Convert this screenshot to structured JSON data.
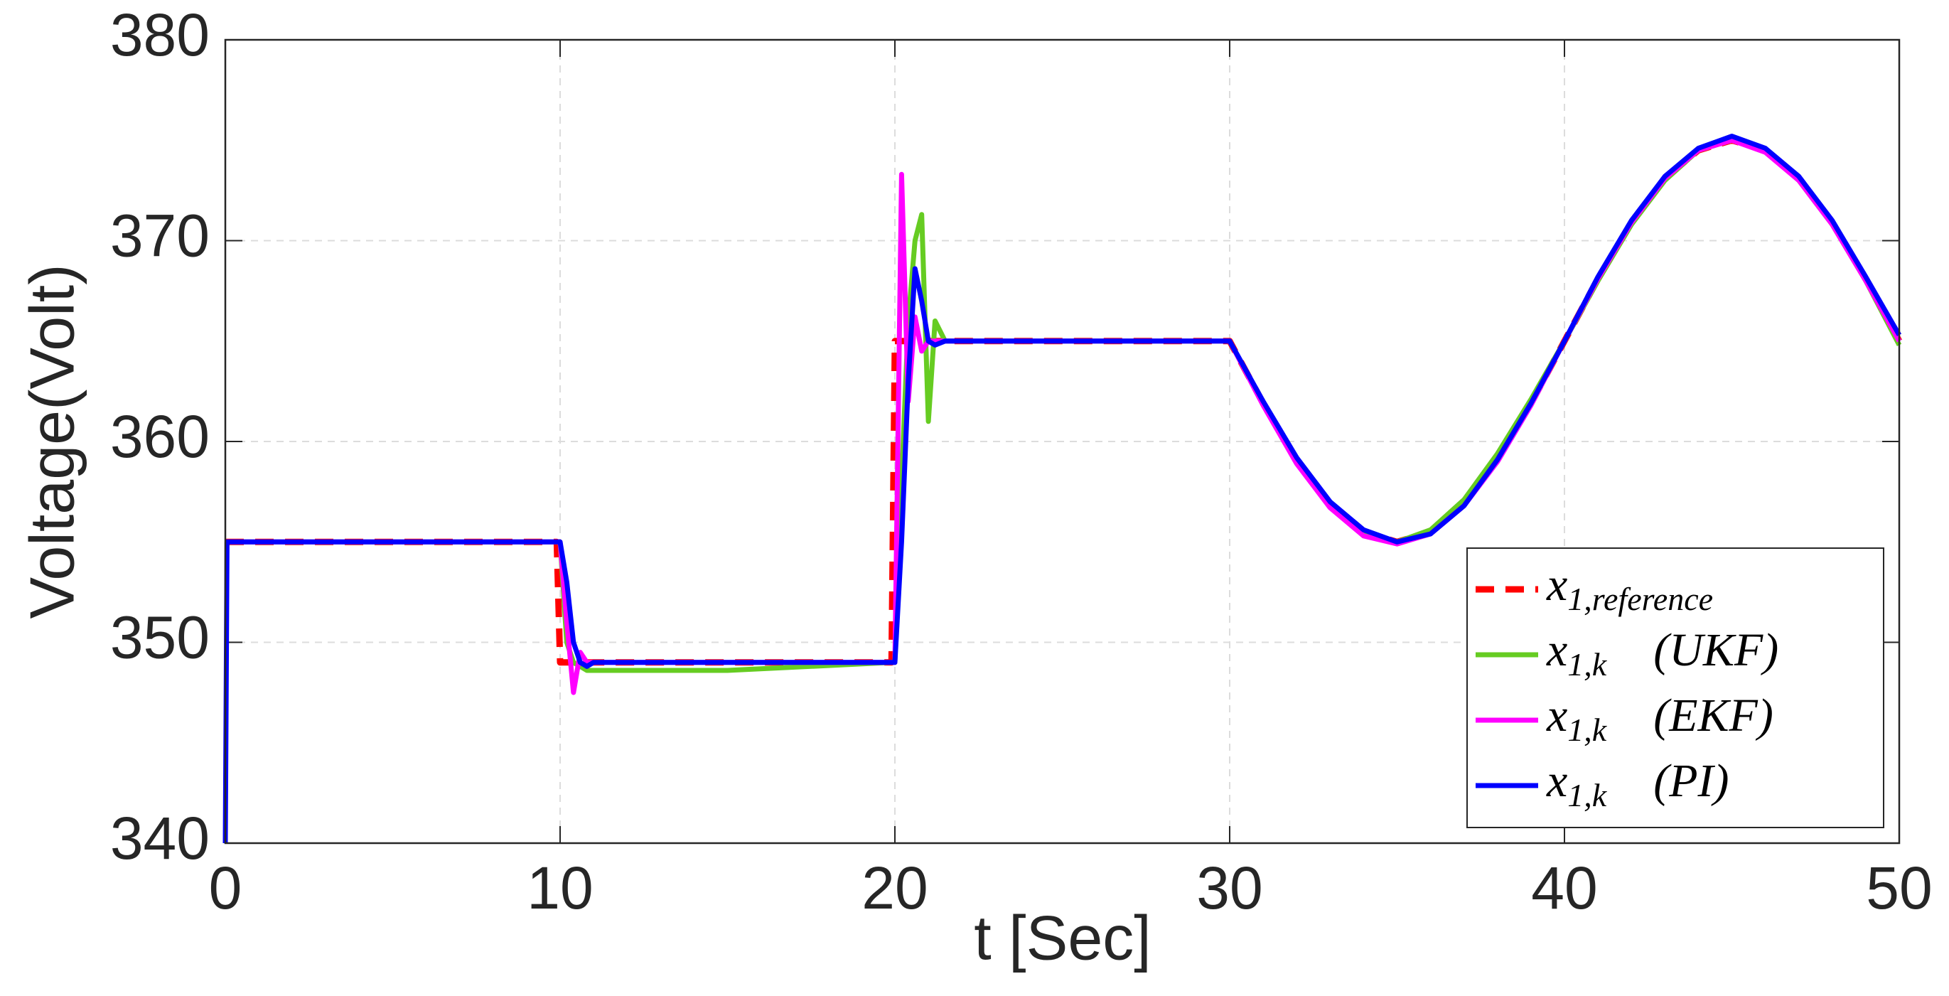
{
  "chart_data": {
    "type": "line",
    "x_label": "t [Sec]",
    "y_label": "Voltage(Volt)",
    "x": [
      0,
      0.05,
      5,
      9.9,
      10,
      10.2,
      10.4,
      10.6,
      10.8,
      11,
      15,
      19.9,
      20,
      20.2,
      20.4,
      20.6,
      20.8,
      21,
      21.2,
      21.5,
      25,
      30,
      31,
      32,
      33,
      34,
      35,
      36,
      37,
      38,
      39,
      40,
      41,
      42,
      43,
      44,
      45,
      46,
      47,
      48,
      49,
      50
    ],
    "series": [
      {
        "name": "x1,reference",
        "color": "#ff0000",
        "dashed": true,
        "values": [
          355,
          355,
          355,
          355,
          349,
          349,
          349,
          349,
          349,
          349,
          349,
          349,
          365,
          365,
          365,
          365,
          365,
          365,
          365,
          365,
          365,
          365,
          361.9,
          359.1,
          356.9,
          355.5,
          355,
          355.5,
          356.9,
          359.1,
          361.9,
          365,
          368.1,
          370.9,
          373.1,
          374.5,
          375,
          374.5,
          373.1,
          370.9,
          368.1,
          365
        ]
      },
      {
        "name": "x1,k (UKF)",
        "color": "#66cc22",
        "values": [
          355,
          355,
          355,
          355,
          355,
          350,
          349,
          348.8,
          348.6,
          348.6,
          348.6,
          349,
          349,
          358,
          366,
          370,
          371.3,
          361,
          366,
          365,
          365,
          365,
          361.9,
          359,
          356.8,
          355.4,
          355,
          355.6,
          357.1,
          359.4,
          362.1,
          365,
          368,
          370.8,
          373,
          374.5,
          375,
          374.5,
          373,
          370.8,
          368,
          364.8
        ]
      },
      {
        "name": "x1,k (EKF)",
        "color": "#ff00ff",
        "values": [
          355,
          355,
          355,
          355,
          355,
          351,
          347.5,
          349.5,
          349,
          349,
          349,
          349,
          349,
          373.3,
          362,
          366.2,
          364.5,
          365,
          365,
          365,
          365,
          365,
          361.8,
          358.9,
          356.7,
          355.3,
          354.9,
          355.4,
          356.8,
          359,
          361.8,
          365,
          368.1,
          370.9,
          373.1,
          374.5,
          375,
          374.4,
          373,
          370.8,
          368,
          365
        ]
      },
      {
        "name": "x1,k (PI)",
        "color": "#0000ff",
        "values": [
          340,
          355,
          355,
          355,
          355,
          353,
          350,
          349,
          348.8,
          349,
          349,
          349,
          349,
          355,
          363,
          368.6,
          367,
          365,
          364.8,
          365,
          365,
          365,
          362,
          359.2,
          357,
          355.6,
          355,
          355.4,
          356.8,
          359.1,
          361.9,
          365,
          368.2,
          371,
          373.2,
          374.6,
          375.2,
          374.6,
          373.2,
          371,
          368.2,
          365.3
        ]
      }
    ],
    "xlim": [
      0,
      50
    ],
    "xticks": [
      0,
      10,
      20,
      30,
      40,
      50
    ],
    "ylim": [
      340,
      380
    ],
    "yticks": [
      340,
      350,
      360,
      370,
      380
    ],
    "grid": true,
    "legend_position": "lower right"
  }
}
